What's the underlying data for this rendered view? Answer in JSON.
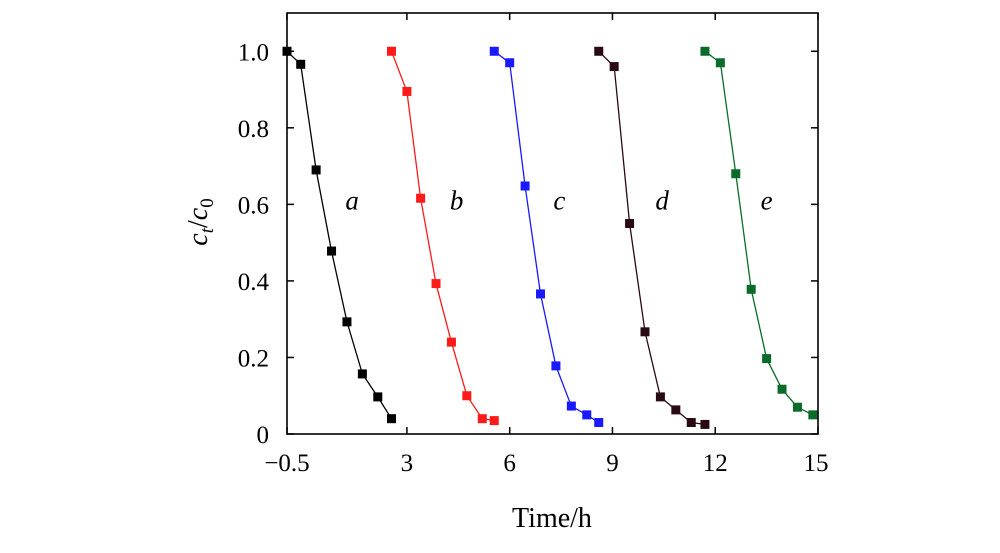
{
  "chart_data": {
    "type": "scatter",
    "xlabel": "Time/h",
    "ylabel": {
      "c1": "c",
      "sub1": "t",
      "sep": "/",
      "c2": "c",
      "sub2": "0"
    },
    "xlim": [
      -0.5,
      15
    ],
    "ylim": [
      0,
      1.1
    ],
    "xticks": [
      {
        "value": -0.5,
        "label": "−0.5"
      },
      {
        "value": 3,
        "label": "3"
      },
      {
        "value": 6,
        "label": "6"
      },
      {
        "value": 9,
        "label": "9"
      },
      {
        "value": 12,
        "label": "12"
      },
      {
        "value": 15,
        "label": "15"
      }
    ],
    "yticks": [
      {
        "value": 0,
        "label": "0"
      },
      {
        "value": 0.2,
        "label": "0.2"
      },
      {
        "value": 0.4,
        "label": "0.4"
      },
      {
        "value": 0.6,
        "label": "0.6"
      },
      {
        "value": 0.8,
        "label": "0.8"
      },
      {
        "value": 1.0,
        "label": "1.0"
      }
    ],
    "grid": false,
    "series": [
      {
        "name": "a",
        "color": "#000000",
        "label_at": [
          1.4,
          0.61
        ],
        "points": [
          [
            -0.5,
            1.0
          ],
          [
            -0.1,
            0.966
          ],
          [
            0.35,
            0.69
          ],
          [
            0.8,
            0.478
          ],
          [
            1.25,
            0.293
          ],
          [
            1.7,
            0.157
          ],
          [
            2.15,
            0.097
          ],
          [
            2.55,
            0.04
          ]
        ]
      },
      {
        "name": "b",
        "color": "#ff1a1a",
        "label_at": [
          4.45,
          0.61
        ],
        "points": [
          [
            2.55,
            1.0
          ],
          [
            3.0,
            0.895
          ],
          [
            3.4,
            0.616
          ],
          [
            3.85,
            0.393
          ],
          [
            4.3,
            0.24
          ],
          [
            4.75,
            0.1
          ],
          [
            5.2,
            0.04
          ],
          [
            5.55,
            0.035
          ]
        ]
      },
      {
        "name": "c",
        "color": "#1a1aff",
        "label_at": [
          7.45,
          0.61
        ],
        "points": [
          [
            5.55,
            1.0
          ],
          [
            6.0,
            0.97
          ],
          [
            6.45,
            0.648
          ],
          [
            6.9,
            0.366
          ],
          [
            7.35,
            0.178
          ],
          [
            7.8,
            0.073
          ],
          [
            8.25,
            0.05
          ],
          [
            8.6,
            0.03
          ]
        ]
      },
      {
        "name": "d",
        "color": "#2a0a12",
        "label_at": [
          10.45,
          0.61
        ],
        "points": [
          [
            8.6,
            1.0
          ],
          [
            9.05,
            0.96
          ],
          [
            9.5,
            0.55
          ],
          [
            9.95,
            0.267
          ],
          [
            10.4,
            0.097
          ],
          [
            10.85,
            0.063
          ],
          [
            11.3,
            0.03
          ],
          [
            11.7,
            0.025
          ]
        ]
      },
      {
        "name": "e",
        "color": "#0a6b2a",
        "label_at": [
          13.5,
          0.61
        ],
        "points": [
          [
            11.7,
            1.0
          ],
          [
            12.15,
            0.97
          ],
          [
            12.6,
            0.68
          ],
          [
            13.05,
            0.378
          ],
          [
            13.5,
            0.197
          ],
          [
            13.95,
            0.117
          ],
          [
            14.4,
            0.07
          ],
          [
            14.85,
            0.05
          ]
        ]
      }
    ]
  }
}
